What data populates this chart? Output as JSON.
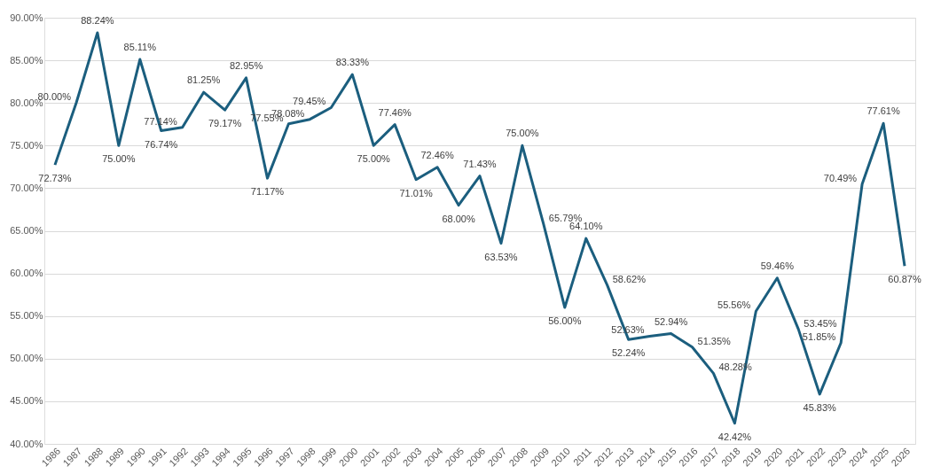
{
  "chart_data": {
    "type": "line",
    "categories": [
      "1986",
      "1987",
      "1988",
      "1989",
      "1990",
      "1991",
      "1992",
      "1993",
      "1994",
      "1995",
      "1996",
      "1997",
      "1998",
      "1999",
      "2000",
      "2001",
      "2002",
      "2003",
      "2004",
      "2005",
      "2006",
      "2007",
      "2008",
      "2009",
      "2010",
      "2011",
      "2012",
      "2013",
      "2014",
      "2015",
      "2016",
      "2017",
      "2018",
      "2019",
      "2020",
      "2021",
      "2022",
      "2023",
      "2024",
      "2025",
      "2026"
    ],
    "series": [
      {
        "color": "#1b5e7e",
        "values": [
          72.73,
          80.0,
          88.24,
          75.0,
          85.11,
          76.74,
          77.14,
          81.25,
          79.17,
          82.95,
          71.17,
          77.55,
          78.08,
          79.45,
          83.33,
          75.0,
          77.46,
          71.01,
          72.46,
          68.0,
          71.43,
          63.53,
          75.0,
          65.79,
          56.0,
          64.1,
          58.62,
          52.24,
          52.63,
          52.94,
          51.35,
          48.28,
          42.42,
          55.56,
          59.46,
          53.45,
          45.83,
          51.85,
          70.49,
          77.61,
          60.87
        ],
        "value_labels": [
          "72.73%",
          "80.00%",
          "88.24%",
          "75.00%",
          "85.11%",
          "76.74%",
          "77.14%",
          "81.25%",
          "79.17%",
          "82.95%",
          "71.17%",
          "77.55%",
          "78.08%",
          "79.45%",
          "83.33%",
          "75.00%",
          "77.46%",
          "71.01%",
          "72.46%",
          "68.00%",
          "71.43%",
          "63.53%",
          "75.00%",
          "65.79%",
          "56.00%",
          "64.10%",
          "58.62%",
          "52.24%",
          "52.63%",
          "52.94%",
          "51.35%",
          "48.28%",
          "42.42%",
          "55.56%",
          "59.46%",
          "53.45%",
          "45.83%",
          "51.85%",
          "70.49%",
          "77.61%",
          "60.87%"
        ]
      }
    ],
    "ylim": [
      40,
      90
    ],
    "yticks": [
      {
        "value": 40,
        "label": "40.00%"
      },
      {
        "value": 45,
        "label": "45.00%"
      },
      {
        "value": 50,
        "label": "50.00%"
      },
      {
        "value": 55,
        "label": "55.00%"
      },
      {
        "value": 60,
        "label": "60.00%"
      },
      {
        "value": 65,
        "label": "65.00%"
      },
      {
        "value": 70,
        "label": "70.00%"
      },
      {
        "value": 75,
        "label": "75.00%"
      },
      {
        "value": 80,
        "label": "80.00%"
      },
      {
        "value": 85,
        "label": "85.00%"
      },
      {
        "value": 90,
        "label": "90.00%"
      }
    ],
    "grid": "y",
    "marker": "none",
    "line_style": "solid"
  }
}
